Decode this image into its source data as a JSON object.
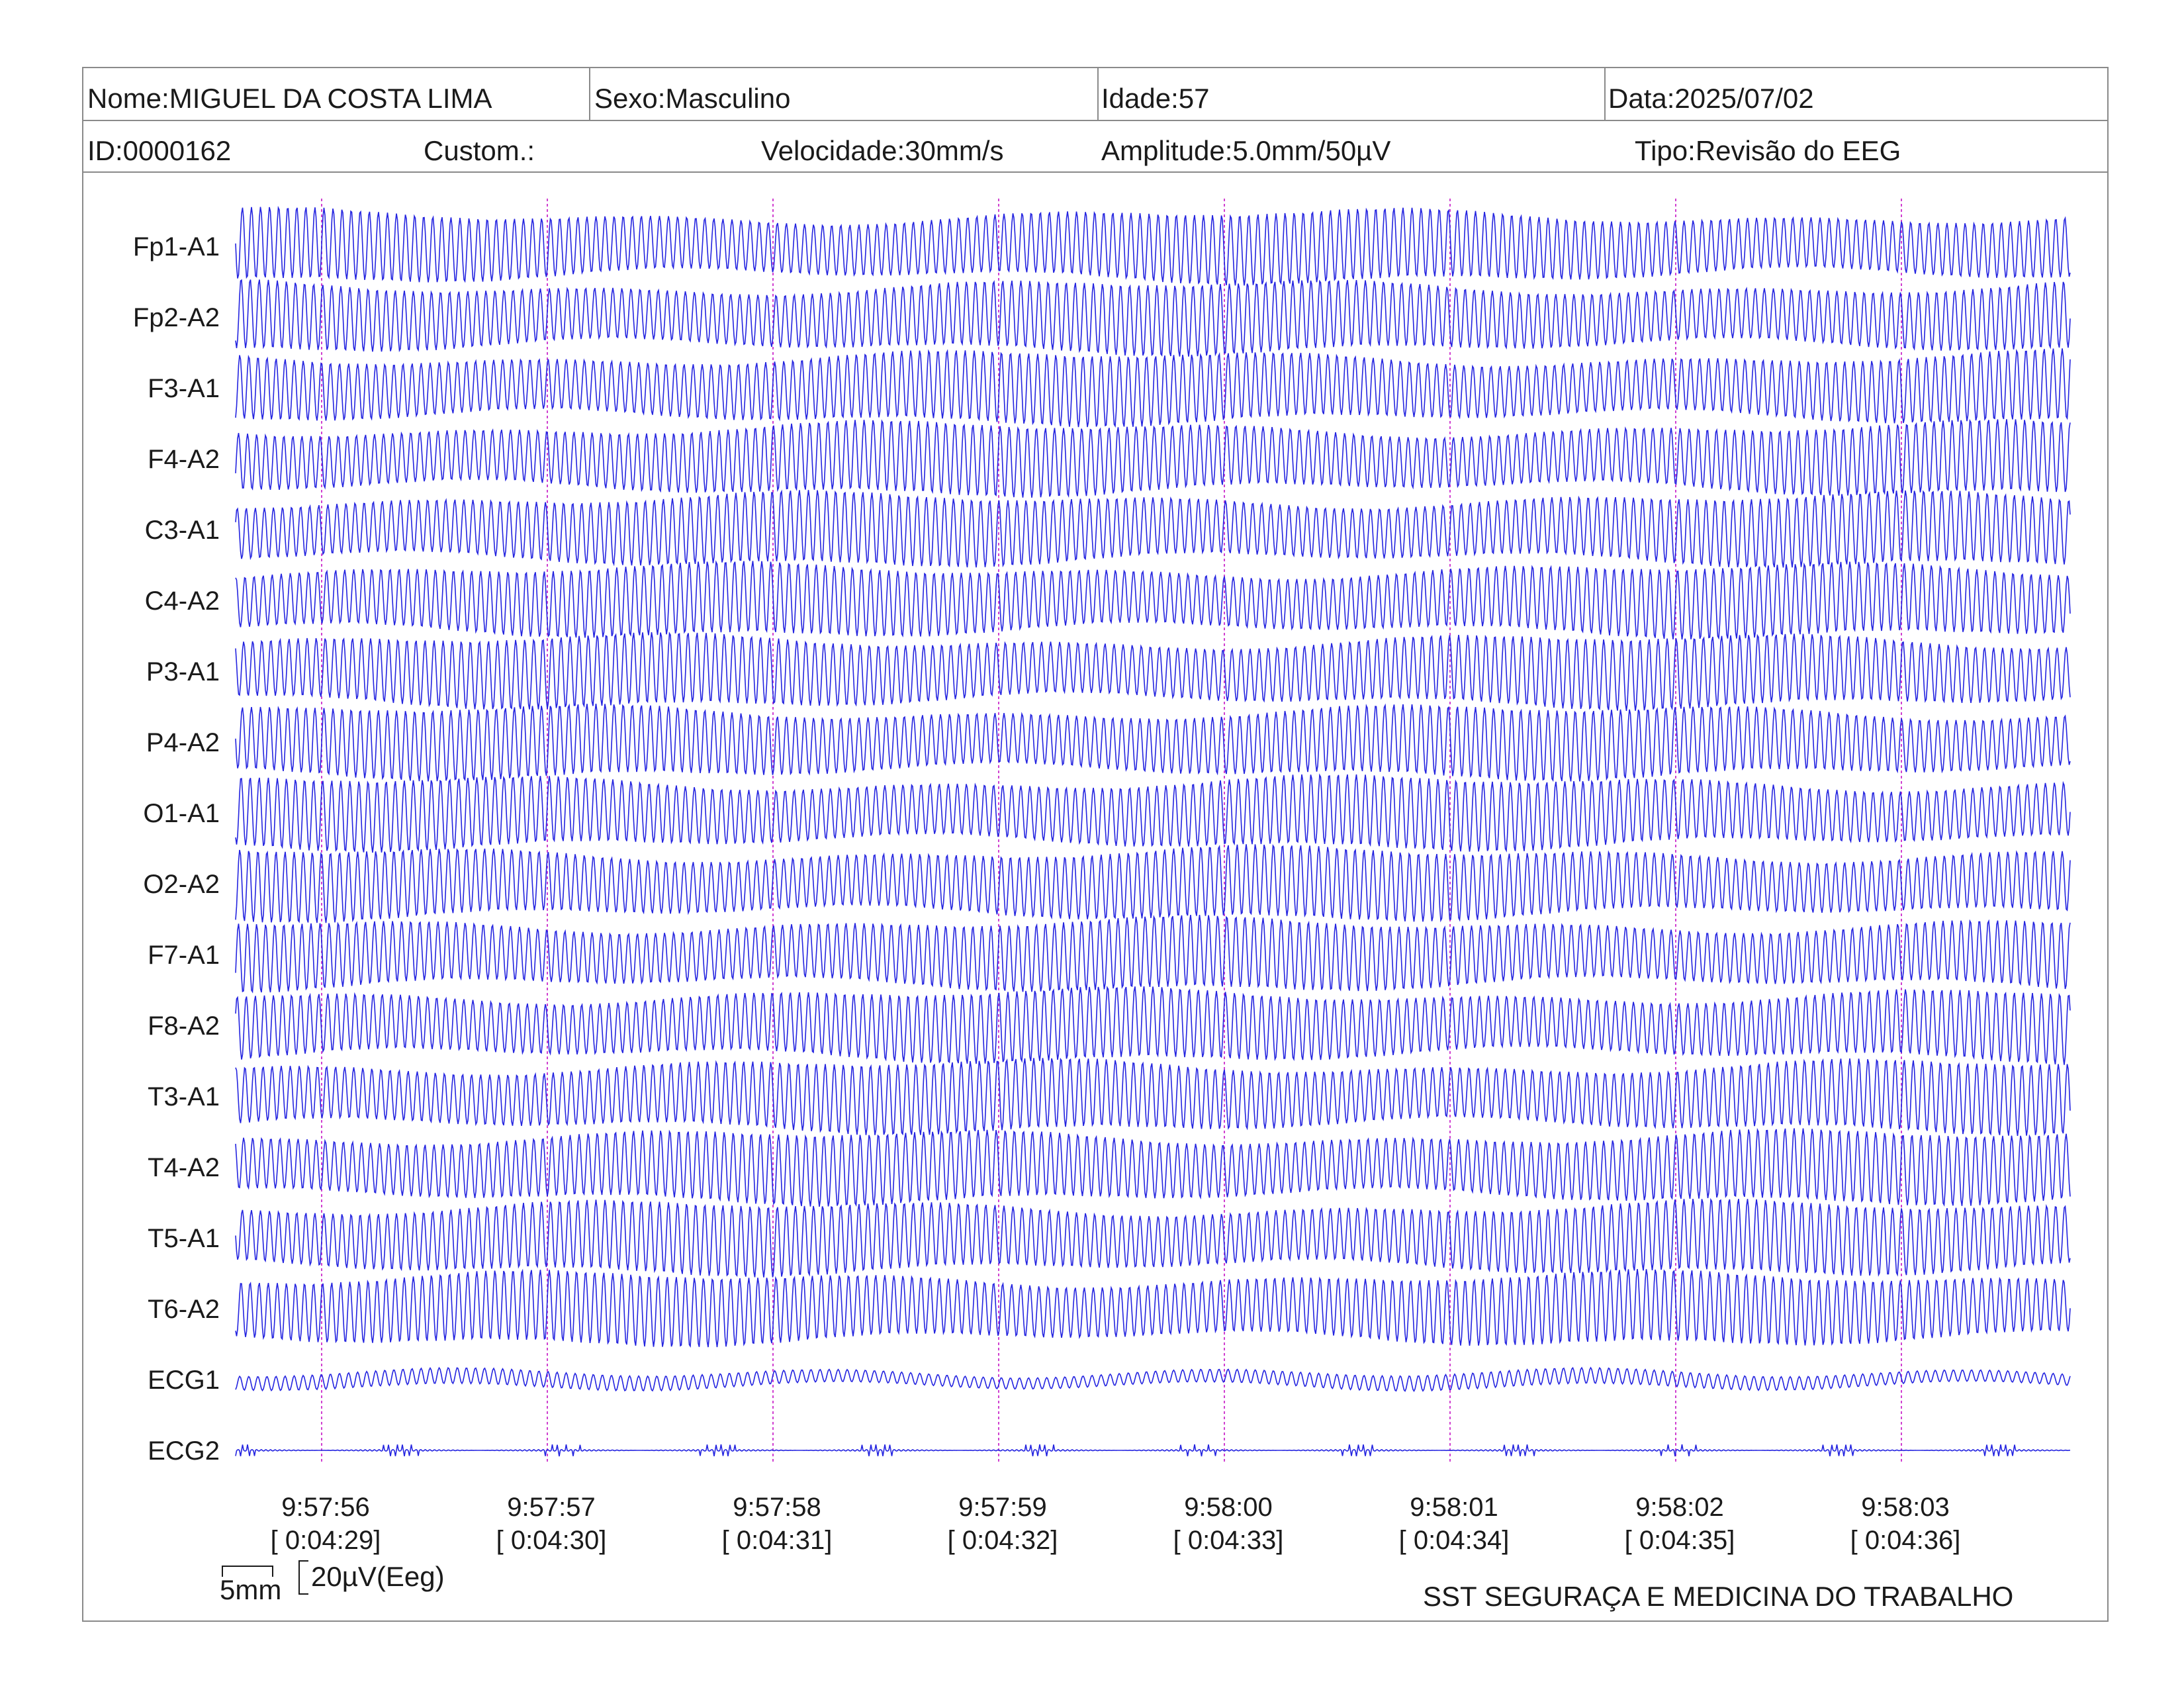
{
  "header": {
    "nome": "Nome:MIGUEL DA COSTA LIMA",
    "sexo": "Sexo:Masculino",
    "idade": "Idade:57",
    "data": "Data:2025/07/02",
    "id": "ID:0000162",
    "custom": "Custom.:",
    "velocidade": "Velocidade:30mm/s",
    "amplitude": "Amplitude:5.0mm/50µV",
    "tipo": "Tipo:Revisão do EEG"
  },
  "colors": {
    "trace": "#2424e0",
    "marker": "#d040d0",
    "frame": "#8a8a8a"
  },
  "chart_data": {
    "type": "line",
    "channels": [
      "Fp1-A1",
      "Fp2-A2",
      "F3-A1",
      "F4-A2",
      "C3-A1",
      "C4-A2",
      "P3-A1",
      "P4-A2",
      "O1-A1",
      "O2-A2",
      "F7-A1",
      "F8-A2",
      "T3-A1",
      "T4-A2",
      "T5-A1",
      "T6-A2",
      "ECG1",
      "ECG2"
    ],
    "time_markers": [
      {
        "clock": "9:57:56",
        "elapsed": "[ 0:04:29]"
      },
      {
        "clock": "9:57:57",
        "elapsed": "[ 0:04:30]"
      },
      {
        "clock": "9:57:58",
        "elapsed": "[ 0:04:31]"
      },
      {
        "clock": "9:57:59",
        "elapsed": "[ 0:04:32]"
      },
      {
        "clock": "9:58:00",
        "elapsed": "[ 0:04:33]"
      },
      {
        "clock": "9:58:01",
        "elapsed": "[ 0:04:34]"
      },
      {
        "clock": "9:58:02",
        "elapsed": "[ 0:04:35]"
      },
      {
        "clock": "9:58:03",
        "elapsed": "[ 0:04:36]"
      }
    ],
    "xlabel": "",
    "ylabel": "",
    "grid": false
  },
  "scale": {
    "time_bar": "5mm",
    "amp_bar": "20µV(Eeg)"
  },
  "footer": {
    "company": "SST SEGURAÇA E MEDICINA DO TRABALHO"
  }
}
